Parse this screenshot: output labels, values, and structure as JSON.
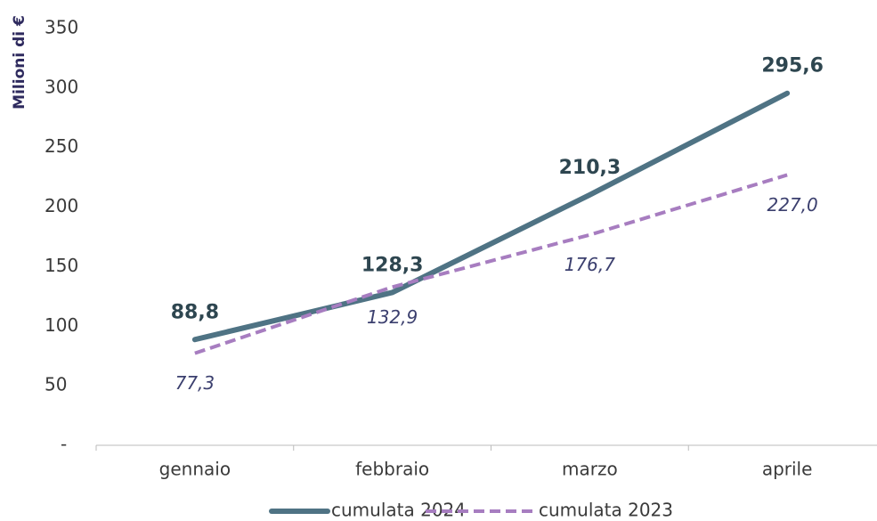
{
  "chart_data": {
    "type": "line",
    "y_label": "Milioni di €",
    "categories": [
      "gennaio",
      "febbraio",
      "marzo",
      "aprile"
    ],
    "series": [
      {
        "name": "cumulata 2024",
        "color": "#4f7384",
        "dash": false,
        "values": [
          88.8,
          128.3,
          210.3,
          295.6
        ],
        "value_labels": [
          "88,8",
          "128,3",
          "210,3",
          "295,6"
        ]
      },
      {
        "name": "cumulata 2023",
        "color": "#a77dc0",
        "dash": true,
        "values": [
          77.3,
          132.9,
          176.7,
          227.0
        ],
        "value_labels": [
          "77,3",
          "132,9",
          "176,7",
          "227,0"
        ]
      }
    ],
    "ylim": [
      0,
      350
    ],
    "yticks": [
      {
        "value": 0,
        "label": "-"
      },
      50,
      100,
      150,
      200,
      250,
      300,
      350
    ],
    "grid": false
  }
}
